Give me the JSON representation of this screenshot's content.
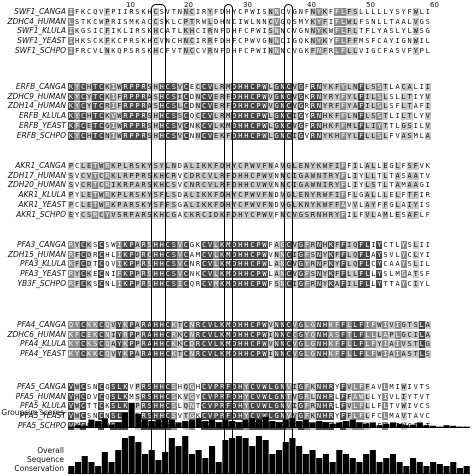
{
  "ruler_ticks": [
    "10",
    "20",
    "30",
    "40",
    "50",
    "60"
  ],
  "groups": [
    {
      "rows": [
        {
          "label": "SWF1_CANGA",
          "seq": "IFKCQVFPIIRSKHCSVTNNCIRYFDHYCPWISNNCVGNFNYKFFLFSLLLLLYSYFWLI"
        },
        {
          "label": "ZDHC4_HUMAN",
          "seq": "LSTKCWPRISMKACCSKLCPTRWLDHNCIWLNNCVGQSMYKYFIFLWLFSNLLTAALVGS"
        },
        {
          "label": "SWF1_KLULA",
          "seq": "IKGSICFIKLIRSKHCATLKHCIRNFDHFCPWISNNCVGNNYKWFLFLTFLYASLYLWSG"
        },
        {
          "label": "SWF1_YEAST",
          "seq": "IHKSCKFKCPRSKHCVNCHNCIRRFDHFCPWVGNNCIGQKNYKYFLFFMSFCAYIGNWIL"
        },
        {
          "label": "SWF1_SCHPO",
          "seq": "IFRCVLNKQPSRSKHCFVTNCCVRNFDHFCPWINNNCVGKFNFRLFLLVIGCFASVFYPL"
        }
      ]
    },
    {
      "rows": [
        {
          "label": "ERFB_CANGA",
          "seq": "KYCHTCKIWRPPRSHHCSVCECCVLRMDHHCPWLGNCVGFRNYKFYLNFLSSTLACALII"
        },
        {
          "label": "ZDHC9_HUMAN",
          "seq": "KYCYTCKIFRPPRASHCSICDNCVERFDHHCPWVGNCVGKRNYRYFYLFILSLSLLTIYV"
        },
        {
          "label": "ZDH14_HUMAN",
          "seq": "KYCYTCRIFRPPRASHCSLCDNCVERFDHHCPWVGNCVGRRNYRFFYAFILSLSFLTAFI"
        },
        {
          "label": "ERFB_KLULA",
          "seq": "KYCHTCKVWRPPRSHHCSSCQCCVLRMDHHCPWLGNCIGYRNHKFFLNFLSSTLILTLYV"
        },
        {
          "label": "ERFB_YEAST",
          "seq": "KFCETCGIWRPPRSHHCSVCNKCVLKMDHHCPWLGNCVGFRNHKFFMLFLIYTTLGSILV"
        },
        {
          "label": "ERFB_SCHPO",
          "seq": "KYCHTCNIWRPPRSHHCSVCNNCVEKFDHHCPWLGNCIGVRNYKHFYLFLLSLFVASMLA"
        }
      ]
    },
    {
      "rows": [
        {
          "label": "AKR1_CANGA",
          "seq": "PCLETWRKPLRSKYSYLNDALIKKFDHYCPWVFNAVGLENYKWFIFFILALLEGLFSFVK"
        },
        {
          "label": "ZDH17_HUMAN",
          "seq": "SVCVTCRKLRPPRSKHCRVCDRCVLRFDHHCPWVNNCIGAWNTRYFLIYLLTLTASAATV"
        },
        {
          "label": "ZDH20_HUMAN",
          "seq": "SVCRTCRIKRPARSKHCSVCNRCVLRFDHHCVWVNNCIGAWNIRYFLIYLSTLTAMAAGI"
        },
        {
          "label": "AKR1_KLULA",
          "seq": "PYLETWRKPLRSKYSFLSDALIKKFDHYCPWVFNDVGLENYRWFIFFLGALLLELFTFIR"
        },
        {
          "label": "AKR1_YEAST",
          "seq": "PCLETWRKPARSKYSFFSGALIKKFDHYCPWVFNDVGLKNYKWFFAVVLAYFFGLAIYIS"
        },
        {
          "label": "AKR1_SCHPO",
          "seq": "EYCSRCYVSRPARSKHCGACKRCIDKFDHYCPWVFNCVGSRNHRYFILFVLAMLESAFLF"
        }
      ]
    },
    {
      "rows": [
        {
          "label": "PFA3_CANGA",
          "seq": "RYCKSCSWIKPARSHHCSVCGKCVLKMDHHCPWFAGCVGFRNHKFFIQFLIYCTLYSLII"
        },
        {
          "label": "ZDH15_HUMAN",
          "seq": "RFCDRCHLIKPDRCHHCSVCAMCVLKMDHHCPWVNNCIGFSNYKFFLQFLAYSVLYCLYI"
        },
        {
          "label": "PFA3_KLULA",
          "seq": "KFCDTCQVIKPPRSHHCSVCNRCVLKMDHHCPWLANCVGYRNFKYFLQFLCYCAAYSLIL"
        },
        {
          "label": "PFA3_YEAST",
          "seq": "RYCKECNIFKPPRSHHCSVCNKCVLKMDHHCPWLANCVGFSNYKFFLLFLLYSLMSATSF"
        },
        {
          "label": "YB3F_SCHPO",
          "seq": "RFCKSCNLIKPPRSHHCSICQRCVMKMDHHCPWFSNCIGFRNYKAFILFLLYTTAYCIYL"
        }
      ]
    },
    {
      "rows": [
        {
          "label": "PFA4_CANGA",
          "seq": "QYCKKCQVYKPARAHHCKTCNRCVLKMDHHCPWVNNCVGLGNHKFFLLFIFWIVIGTSLA"
        },
        {
          "label": "ZDHC6_HUMAN",
          "seq": "KFCEKCNIYRPPRAHHCRKCNRCVLKMDHHCPWINNCCGYQNHASFTLFLLLAPLGCILA"
        },
        {
          "label": "PFA4_KLULA",
          "seq": "KYCKSCQAYKPPRAHHCKKCDRCVLKMDHHCPWVNNCVGLGNHKFFLLFLFYIAIVSTLG"
        },
        {
          "label": "PFA4_YEAST",
          "seq": "KYCKKCQVYKPARAHHCKTCNRCVLKMDHHCPWINNCVGLGNHKFFLLFLFWIAIASTLS"
        }
      ]
    },
    {
      "rows": [
        {
          "label": "PFA5_CANGA",
          "seq": "VWCSNCQSLKVPRSHHCSHQGHCVPRFDHYCVWLGNVIGFKNHRYFVLFFAVLMIWIVTS"
        },
        {
          "label": "PFA5_HUMAN",
          "seq": "VHCDVCQSLKMSRSHHCSKVGYCVPRFDHYCVWLGNTVGRLNHRLFFAWLLYIVLIYTVT"
        },
        {
          "label": "PFA5_KLULA",
          "seq": "VWCTTCKSLKVPRSHHCSLQNTCVPRFDHYCVWLGNVIGFRNHRLFVLFLLFLTVWIVCS"
        },
        {
          "label": "PFA5_YEAST",
          "seq": "VWCSNCNSLKISRSHHCSVTGKCVPRFDHYCVWLGNVVGFKNHRYFFLFLFCLMAVTAVC"
        },
        {
          "label": "PFA5_SCHPO",
          "seq": "VYCEKCNSLKPSRSHHCTVQGRCVPRFDHFCVWLGNVIGFKNHRFFVLFIIFLFIWCIAT"
        }
      ]
    }
  ],
  "groupsim_label": "Groupsim scores",
  "conservation_label": "Overall Sequence Conservation",
  "groupsim_values": [
    0.05,
    0.1,
    0.08,
    0.3,
    0.25,
    0.35,
    0.12,
    0.2,
    0.55,
    0.9,
    0.5,
    0.3,
    0.25,
    0.3,
    0.35,
    0.3,
    0.2,
    0.25,
    0.3,
    0.35,
    0.25,
    0.3,
    0.2,
    0.3,
    0.25,
    0.2,
    0.3,
    0.35,
    0.3,
    0.4,
    0.25,
    0.2,
    0.3,
    0.35,
    0.25,
    0.3,
    0.2,
    0.25,
    0.2,
    0.15,
    0.2,
    0.25,
    0.3,
    0.2,
    0.15,
    0.2,
    0.1,
    0.15,
    0.2,
    0.15,
    0.1,
    0.12,
    0.2,
    0.1,
    0.08,
    0.05,
    0.1,
    0.08,
    0.05,
    0.05
  ],
  "conservation_values": [
    0.2,
    0.3,
    0.45,
    0.3,
    0.2,
    0.55,
    0.3,
    0.6,
    0.9,
    0.95,
    0.8,
    0.5,
    0.6,
    0.35,
    0.55,
    0.9,
    0.7,
    0.95,
    0.5,
    0.6,
    0.4,
    0.7,
    0.3,
    0.85,
    0.9,
    0.95,
    0.9,
    0.7,
    0.95,
    0.85,
    0.5,
    0.6,
    0.8,
    0.9,
    0.7,
    0.5,
    0.6,
    0.4,
    0.5,
    0.3,
    0.6,
    0.5,
    0.4,
    0.3,
    0.5,
    0.6,
    0.3,
    0.4,
    0.5,
    0.3,
    0.2,
    0.4,
    0.3,
    0.2,
    0.3,
    0.25,
    0.2,
    0.3,
    0.15,
    0.2
  ],
  "highlight_columns": [
    14,
    15,
    26,
    36
  ],
  "residue_colors": {
    "conserved": "#4a4a4a",
    "similar": "#8c8c8c",
    "weak": "#c8c8c8",
    "text_dark": "#111111",
    "text_light": "#ffffff"
  }
}
